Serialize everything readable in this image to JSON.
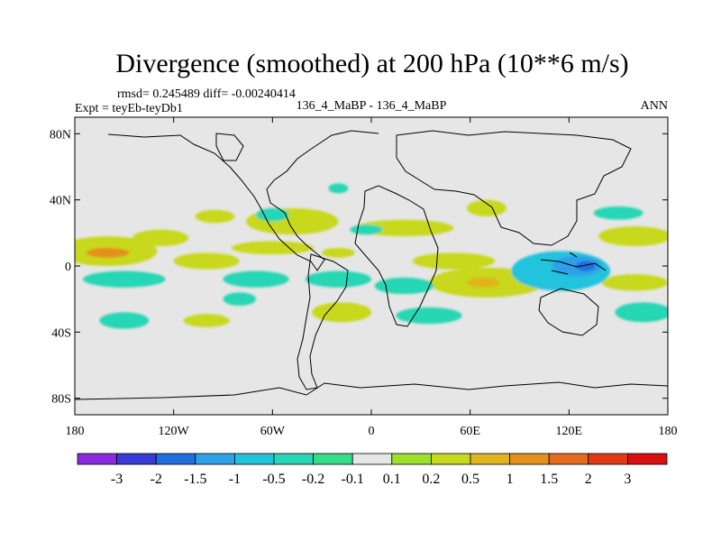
{
  "chart_data": {
    "type": "contour-map",
    "title": "Divergence (smoothed) at 200 hPa (10**6 m/s)",
    "stats": "rmsd= 0.245489 diff= -0.00240414",
    "experiment": "Expt = teyEb-teyDb1",
    "case": "136_4_MaBP - 136_4_MaBP",
    "season": "ANN",
    "xlim": [
      -180,
      180
    ],
    "ylim": [
      -90,
      90
    ],
    "x_ticks": [
      {
        "value": -180,
        "label": "180"
      },
      {
        "value": -120,
        "label": "120W"
      },
      {
        "value": -60,
        "label": "60W"
      },
      {
        "value": 0,
        "label": "0"
      },
      {
        "value": 60,
        "label": "60E"
      },
      {
        "value": 120,
        "label": "120E"
      },
      {
        "value": 180,
        "label": "180"
      }
    ],
    "y_ticks": [
      {
        "value": 80,
        "label": "80N"
      },
      {
        "value": 40,
        "label": "40N"
      },
      {
        "value": 0,
        "label": "0"
      },
      {
        "value": -40,
        "label": "40S"
      },
      {
        "value": -80,
        "label": "80S"
      }
    ],
    "levels": [
      -3,
      -2,
      -1.5,
      -1,
      -0.5,
      -0.2,
      -0.1,
      0.1,
      0.2,
      0.5,
      1,
      1.5,
      2,
      3
    ],
    "level_labels": [
      "-3",
      "-2",
      "-1.5",
      "-1",
      "-0.5",
      "-0.2",
      "-0.1",
      "0.1",
      "0.2",
      "0.5",
      "1",
      "1.5",
      "2",
      "3"
    ],
    "colors": [
      "#8a2be2",
      "#3a3ad8",
      "#1f6fe0",
      "#2ea0e8",
      "#22c3dc",
      "#27d6b4",
      "#33dd8a",
      "#e6e6e6",
      "#9ce02a",
      "#c8d81e",
      "#e0b41e",
      "#e5901e",
      "#e56a1c",
      "#e03a16",
      "#d81010"
    ],
    "features": [
      {
        "lon": -160,
        "lat": 9,
        "rx": 30,
        "ry": 9,
        "value": 0.4
      },
      {
        "lon": -160,
        "lat": 8,
        "rx": 13,
        "ry": 3,
        "value": 1.3
      },
      {
        "lon": -128,
        "lat": 17,
        "rx": 17,
        "ry": 5,
        "value": 0.3
      },
      {
        "lon": -100,
        "lat": 3,
        "rx": 20,
        "ry": 5,
        "value": 0.3
      },
      {
        "lon": -95,
        "lat": 30,
        "rx": 12,
        "ry": 4,
        "value": 0.3
      },
      {
        "lon": -48,
        "lat": 27,
        "rx": 28,
        "ry": 8,
        "value": 0.3
      },
      {
        "lon": -60,
        "lat": 11,
        "rx": 25,
        "ry": 4,
        "value": 0.3
      },
      {
        "lon": -20,
        "lat": 8,
        "rx": 10,
        "ry": 3,
        "value": 0.3
      },
      {
        "lon": 20,
        "lat": 23,
        "rx": 30,
        "ry": 5,
        "value": 0.3
      },
      {
        "lon": 50,
        "lat": 3,
        "rx": 25,
        "ry": 5,
        "value": 0.3
      },
      {
        "lon": 70,
        "lat": -10,
        "rx": 35,
        "ry": 9,
        "value": 0.3
      },
      {
        "lon": 68,
        "lat": -10,
        "rx": 10,
        "ry": 3,
        "value": 0.7
      },
      {
        "lon": 70,
        "lat": 35,
        "rx": 12,
        "ry": 5,
        "value": 0.3
      },
      {
        "lon": 160,
        "lat": 18,
        "rx": 22,
        "ry": 6,
        "value": 0.3
      },
      {
        "lon": 160,
        "lat": -10,
        "rx": 20,
        "ry": 5,
        "value": 0.3
      },
      {
        "lon": -18,
        "lat": -28,
        "rx": 18,
        "ry": 6,
        "value": 0.3
      },
      {
        "lon": -100,
        "lat": -33,
        "rx": 14,
        "ry": 4,
        "value": 0.3
      },
      {
        "lon": -150,
        "lat": -8,
        "rx": 25,
        "ry": 5,
        "value": -0.3
      },
      {
        "lon": -150,
        "lat": -33,
        "rx": 15,
        "ry": 5,
        "value": -0.3
      },
      {
        "lon": -70,
        "lat": -8,
        "rx": 20,
        "ry": 5,
        "value": -0.3
      },
      {
        "lon": -80,
        "lat": -20,
        "rx": 10,
        "ry": 4,
        "value": -0.3
      },
      {
        "lon": -20,
        "lat": -8,
        "rx": 20,
        "ry": 5,
        "value": -0.3
      },
      {
        "lon": 20,
        "lat": -12,
        "rx": 18,
        "ry": 5,
        "value": -0.3
      },
      {
        "lon": 35,
        "lat": -30,
        "rx": 20,
        "ry": 5,
        "value": -0.3
      },
      {
        "lon": 115,
        "lat": -3,
        "rx": 30,
        "ry": 12,
        "value": -0.6
      },
      {
        "lon": 125,
        "lat": 0,
        "rx": 15,
        "ry": 6,
        "value": -1.2
      },
      {
        "lon": 130,
        "lat": 0,
        "rx": 6,
        "ry": 3,
        "value": -1.7
      },
      {
        "lon": 165,
        "lat": -28,
        "rx": 17,
        "ry": 6,
        "value": -0.3
      },
      {
        "lon": 150,
        "lat": 32,
        "rx": 15,
        "ry": 4,
        "value": -0.3
      },
      {
        "lon": -60,
        "lat": 31,
        "rx": 10,
        "ry": 4,
        "value": -0.3
      },
      {
        "lon": -20,
        "lat": 47,
        "rx": 6,
        "ry": 3,
        "value": -0.3
      },
      {
        "lon": -3,
        "lat": 22,
        "rx": 10,
        "ry": 3,
        "value": -0.3
      }
    ]
  }
}
